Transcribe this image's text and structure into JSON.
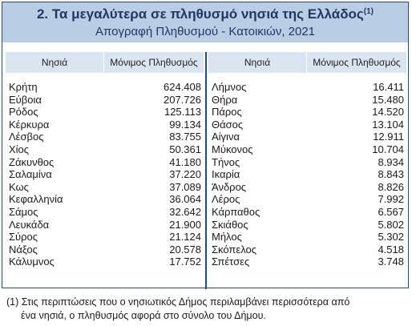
{
  "header": {
    "title": "2. Τα μεγαλύτερα σε πληθυσμό νησιά της Ελλάδος",
    "title_note": "(1)",
    "subtitle": "Απογραφή Πληθυσμού - Κατοικιών, 2021"
  },
  "columns": {
    "name": "Νησιά",
    "population": "Μόνιμος Πληθυσμός"
  },
  "left_rows": [
    {
      "name": "Κρήτη",
      "pop": "624.408"
    },
    {
      "name": "Εύβοια",
      "pop": "207.726"
    },
    {
      "name": "Ρόδος",
      "pop": "125.113"
    },
    {
      "name": "Κέρκυρα",
      "pop": "99.134"
    },
    {
      "name": "Λέσβος",
      "pop": "83.755"
    },
    {
      "name": "Χίος",
      "pop": "50.361"
    },
    {
      "name": "Ζάκυνθος",
      "pop": "41.180"
    },
    {
      "name": "Σαλαμίνα",
      "pop": "37.220"
    },
    {
      "name": "Κως",
      "pop": "37.089"
    },
    {
      "name": "Κεφαλληνία",
      "pop": "36.064"
    },
    {
      "name": "Σάμος",
      "pop": "32.642"
    },
    {
      "name": "Λευκάδα",
      "pop": "21.900"
    },
    {
      "name": "Σύρος",
      "pop": "21.124"
    },
    {
      "name": "Νάξος",
      "pop": "20.578"
    },
    {
      "name": "Κάλυμνος",
      "pop": "17.752"
    }
  ],
  "right_rows": [
    {
      "name": "Λήμνος",
      "pop": "16.411"
    },
    {
      "name": "Θήρα",
      "pop": "15.480"
    },
    {
      "name": "Πάρος",
      "pop": "14.520"
    },
    {
      "name": "Θάσος",
      "pop": "13.104"
    },
    {
      "name": "Αίγινα",
      "pop": "12.911"
    },
    {
      "name": "Μύκονος",
      "pop": "10.704"
    },
    {
      "name": "Τήνος",
      "pop": "8.934"
    },
    {
      "name": "Ικαρία",
      "pop": "8.843"
    },
    {
      "name": "Άνδρος",
      "pop": "8.826"
    },
    {
      "name": "Λέρος",
      "pop": "7.992"
    },
    {
      "name": "Κάρπαθος",
      "pop": "6.567"
    },
    {
      "name": "Σκιάθος",
      "pop": "5.802"
    },
    {
      "name": "Μήλος",
      "pop": "5.302"
    },
    {
      "name": "Σκόπελος",
      "pop": "4.518"
    },
    {
      "name": "Σπέτσες",
      "pop": "3.748"
    }
  ],
  "footnote": {
    "line1": "(1) Στις περιπτώσεις που ο νησιωτικός Δήμος περιλαμβάνει περισσότερα από",
    "line2": "ένα νησιά, ο πληθυσμός αφορά στο σύνολο του Δήμου."
  }
}
